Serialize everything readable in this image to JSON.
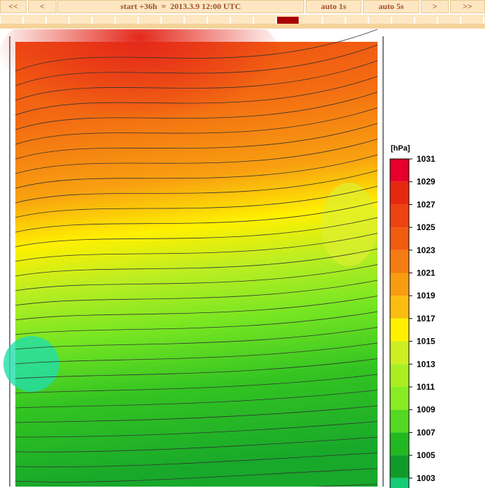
{
  "nav": {
    "first": "<<",
    "prev": "<",
    "title": "start +36h  =  2013.3.9 12:00 UTC",
    "auto1": "auto 1s",
    "auto5": "auto 5s",
    "next": ">",
    "last": ">>"
  },
  "legend": {
    "unit": "[hPa]",
    "ticks": [
      1031,
      1029,
      1027,
      1025,
      1023,
      1021,
      1019,
      1017,
      1015,
      1013,
      1011,
      1009,
      1007,
      1005,
      1003
    ],
    "colors": [
      "#e6002a",
      "#e8280e",
      "#ee4212",
      "#f05c10",
      "#f47c12",
      "#f89c10",
      "#fbbe10",
      "#fff000",
      "#ccee22",
      "#aaee22",
      "#88ec22",
      "#55d822",
      "#22b822",
      "#119a2a",
      "#16cc77"
    ]
  }
}
